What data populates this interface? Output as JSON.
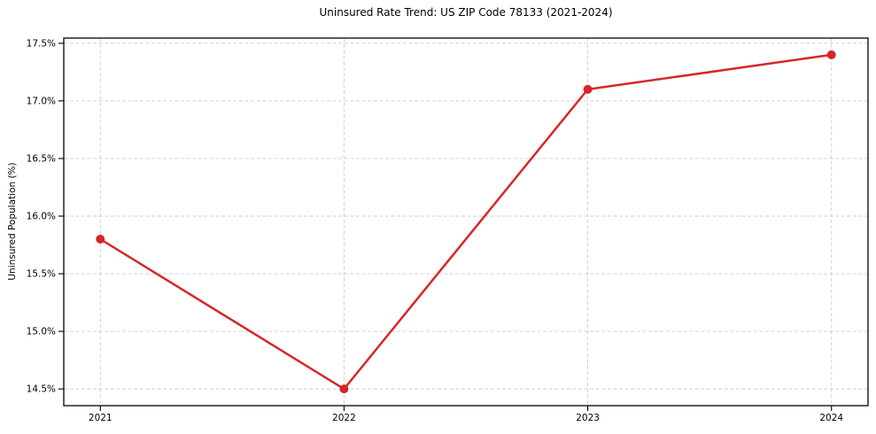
{
  "figure": {
    "background": "#ffffff"
  },
  "chart_data": {
    "type": "line",
    "title": "Uninsured Rate Trend: US ZIP Code 78133 (2021-2024)",
    "xlabel": "",
    "ylabel": "Uninsured Population (%)",
    "x": [
      2021,
      2022,
      2023,
      2024
    ],
    "series": [
      {
        "name": "Uninsured rate",
        "values": [
          15.8,
          14.5,
          17.1,
          17.4
        ],
        "color": "#d62728",
        "marker": "circle"
      }
    ],
    "xticks": {
      "values": [
        2021,
        2022,
        2023,
        2024
      ],
      "labels": [
        "2021",
        "2022",
        "2023",
        "2024"
      ]
    },
    "yticks": {
      "values": [
        14.5,
        15.0,
        15.5,
        16.0,
        16.5,
        17.0,
        17.5
      ],
      "labels": [
        "14.5%",
        "15.0%",
        "15.5%",
        "16.0%",
        "16.5%",
        "17.0%",
        "17.5%"
      ]
    },
    "xlim": [
      2020.85,
      2024.15
    ],
    "ylim": [
      14.355,
      17.545
    ],
    "grid": true,
    "grid_color": "#cccccc",
    "legend": "none",
    "line_width": 2.5,
    "marker_radius": 5,
    "spine_color": "#000000",
    "tick_color": "#000000",
    "text_color": "#000000",
    "tick_font_size": 10.5
  }
}
